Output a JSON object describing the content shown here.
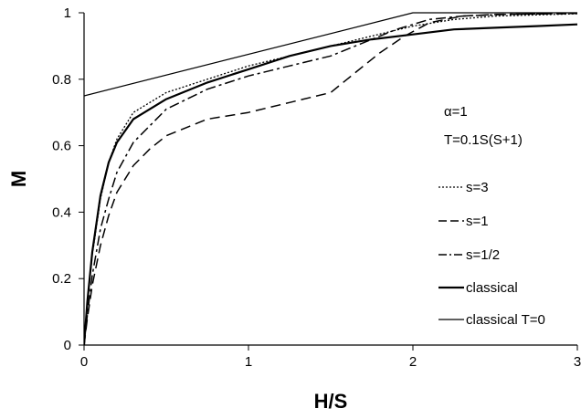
{
  "chart_data": {
    "type": "line",
    "xlabel": "H/S",
    "ylabel": "M",
    "xlim": [
      0,
      3
    ],
    "ylim": [
      0,
      1
    ],
    "x_ticks": [
      "0",
      "1",
      "2",
      "3"
    ],
    "y_ticks": [
      "0",
      "0.2",
      "0.4",
      "0.6",
      "0.8",
      "1"
    ],
    "grid": false,
    "legend_position": "right",
    "annotations": [
      "α=1",
      "T=0.1S(S+1)"
    ],
    "series": [
      {
        "name": "s=3",
        "style": "dotted",
        "width": 1.3,
        "points": [
          [
            0,
            0
          ],
          [
            0.02,
            0.12
          ],
          [
            0.05,
            0.27
          ],
          [
            0.1,
            0.44
          ],
          [
            0.15,
            0.55
          ],
          [
            0.2,
            0.62
          ],
          [
            0.3,
            0.7
          ],
          [
            0.5,
            0.76
          ],
          [
            0.75,
            0.8
          ],
          [
            1.0,
            0.84
          ],
          [
            1.25,
            0.87
          ],
          [
            1.5,
            0.9
          ],
          [
            1.75,
            0.93
          ],
          [
            2.0,
            0.96
          ],
          [
            2.25,
            0.98
          ],
          [
            2.5,
            0.99
          ],
          [
            3.0,
            0.997
          ]
        ]
      },
      {
        "name": "s=1",
        "style": "dashed",
        "width": 1.5,
        "points": [
          [
            0,
            0
          ],
          [
            0.02,
            0.08
          ],
          [
            0.05,
            0.18
          ],
          [
            0.1,
            0.3
          ],
          [
            0.15,
            0.39
          ],
          [
            0.2,
            0.46
          ],
          [
            0.3,
            0.54
          ],
          [
            0.4,
            0.59
          ],
          [
            0.5,
            0.63
          ],
          [
            0.75,
            0.68
          ],
          [
            1.0,
            0.7
          ],
          [
            1.25,
            0.73
          ],
          [
            1.5,
            0.76
          ],
          [
            1.65,
            0.82
          ],
          [
            1.8,
            0.88
          ],
          [
            1.95,
            0.93
          ],
          [
            2.1,
            0.97
          ],
          [
            2.3,
            0.99
          ],
          [
            2.5,
            0.995
          ],
          [
            3.0,
            0.998
          ]
        ]
      },
      {
        "name": "s=1/2",
        "style": "dashdot",
        "width": 1.5,
        "points": [
          [
            0,
            0
          ],
          [
            0.02,
            0.09
          ],
          [
            0.05,
            0.21
          ],
          [
            0.1,
            0.35
          ],
          [
            0.15,
            0.44
          ],
          [
            0.2,
            0.52
          ],
          [
            0.3,
            0.61
          ],
          [
            0.5,
            0.71
          ],
          [
            0.75,
            0.77
          ],
          [
            1.0,
            0.81
          ],
          [
            1.25,
            0.84
          ],
          [
            1.5,
            0.87
          ],
          [
            1.75,
            0.92
          ],
          [
            1.9,
            0.95
          ],
          [
            2.1,
            0.98
          ],
          [
            2.3,
            0.99
          ],
          [
            2.6,
            0.996
          ],
          [
            3.0,
            0.998
          ]
        ]
      },
      {
        "name": "classical",
        "style": "solid",
        "width": 2.2,
        "points": [
          [
            0,
            0
          ],
          [
            0.02,
            0.13
          ],
          [
            0.05,
            0.28
          ],
          [
            0.1,
            0.45
          ],
          [
            0.15,
            0.55
          ],
          [
            0.2,
            0.61
          ],
          [
            0.3,
            0.68
          ],
          [
            0.5,
            0.74
          ],
          [
            0.75,
            0.79
          ],
          [
            1.0,
            0.83
          ],
          [
            1.25,
            0.87
          ],
          [
            1.5,
            0.9
          ],
          [
            1.75,
            0.92
          ],
          [
            2.0,
            0.935
          ],
          [
            2.25,
            0.95
          ],
          [
            2.5,
            0.955
          ],
          [
            2.75,
            0.96
          ],
          [
            3.0,
            0.965
          ]
        ]
      },
      {
        "name": "classical T=0",
        "style": "solid",
        "width": 1.2,
        "points": [
          [
            0,
            0.75
          ],
          [
            2.0,
            1.0
          ],
          [
            3.0,
            1.0
          ]
        ]
      }
    ]
  }
}
